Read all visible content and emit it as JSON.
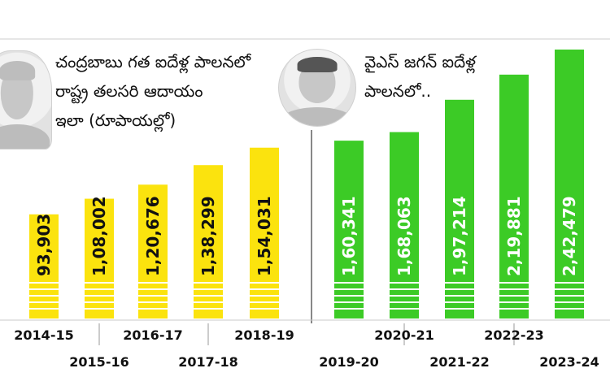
{
  "captions": {
    "left": [
      "చంద్రబాబు గత ఐదేళ్ల పాలనలో",
      "రాష్ట్ర తలసరి ఆదాయం",
      "ఇలా (రూపాయల్లో)"
    ],
    "right": [
      "వైఎస్ జగన్ ఐదేళ్ల",
      "పాలనలో.."
    ]
  },
  "colors": {
    "yellow": "#FBE30E",
    "green": "#3CCB26",
    "axis": "#888888"
  },
  "chart_data": {
    "type": "bar",
    "categories": [
      "2014-15",
      "2015-16",
      "2016-17",
      "2017-18",
      "2018-19",
      "2019-20",
      "2020-21",
      "2021-22",
      "2022-23",
      "2023-24"
    ],
    "values": [
      93903,
      108002,
      120676,
      138299,
      154031,
      160341,
      168063,
      197214,
      219881,
      242479
    ],
    "value_labels": [
      "93,903",
      "1,08,002",
      "1,20,676",
      "1,38,299",
      "1,54,031",
      "1,60,341",
      "1,68,063",
      "1,97,214",
      "2,19,881",
      "2,42,479"
    ],
    "groups": [
      {
        "range": [
          0,
          4
        ],
        "color": "#FBE30E"
      },
      {
        "range": [
          5,
          9
        ],
        "color": "#3CCB26"
      }
    ],
    "ylim": [
      0,
      250000
    ],
    "grid": false
  }
}
